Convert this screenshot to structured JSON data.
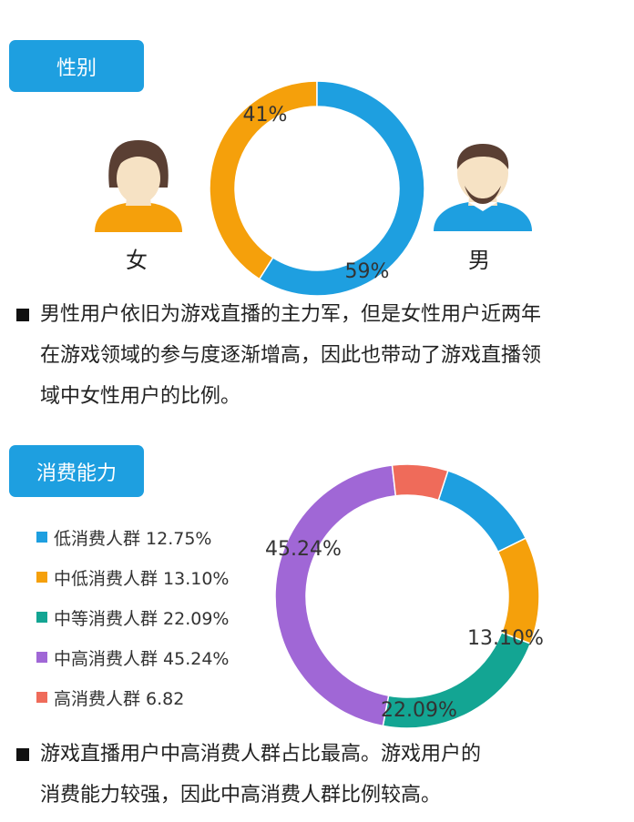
{
  "gender": {
    "title": "性别",
    "female_label": "女",
    "male_label": "男",
    "description": "男性用户依旧为游戏直播的主力军，但是女性用户近两年在游戏领域的参与度逐渐增高，因此也带动了游戏直播领域中女性用户的比例。",
    "lines": [
      "男性用户依旧为游戏直播的主力军，但是女性用户近两年",
      "在游戏领域的参与度逐渐增高，因此也带动了游戏直播领",
      "域中女性用户的比例。"
    ]
  },
  "consumption": {
    "title": "消费能力",
    "description": "游戏直播用户中高消费人群占比最高。游戏用户的消费能力较强，因此中高消费人群比例较高。",
    "lines": [
      "游戏直播用户中高消费人群占比最高。游戏用户的",
      "消费能力较强，因此中高消费人群比例较高。"
    ]
  },
  "icons": {
    "female": "female-avatar-icon",
    "male": "male-avatar-icon",
    "bullet": "square-bullet-icon"
  },
  "colors": {
    "accent": "#1e9fe0",
    "orange": "#f5a00b",
    "teal": "#13a593",
    "purple": "#a067d6",
    "red": "#ef6b5a"
  },
  "chart_data": [
    {
      "type": "pie",
      "title": "性别",
      "slices": [
        {
          "label": "女",
          "value": 41,
          "display": "41%",
          "color": "#f5a00b"
        },
        {
          "label": "男",
          "value": 59,
          "display": "59%",
          "color": "#1e9fe0"
        }
      ]
    },
    {
      "type": "pie",
      "title": "消费能力",
      "legend_position": "left",
      "slices": [
        {
          "label": "低消费人群",
          "value": 12.75,
          "legend": "低消费人群 12.75%",
          "display": "",
          "color": "#1e9fe0"
        },
        {
          "label": "中低消费人群",
          "value": 13.1,
          "legend": "中低消费人群 13.10%",
          "display": "13.10%",
          "color": "#f5a00b"
        },
        {
          "label": "中等消费人群",
          "value": 22.09,
          "legend": "中等消费人群 22.09%",
          "display": "22.09%",
          "color": "#13a593"
        },
        {
          "label": "中高消费人群",
          "value": 45.24,
          "legend": "中高消费人群 45.24%",
          "display": "45.24%",
          "color": "#a067d6"
        },
        {
          "label": "高消费人群",
          "value": 6.82,
          "legend": "高消费人群 6.82",
          "display": "",
          "color": "#ef6b5a"
        }
      ]
    }
  ]
}
